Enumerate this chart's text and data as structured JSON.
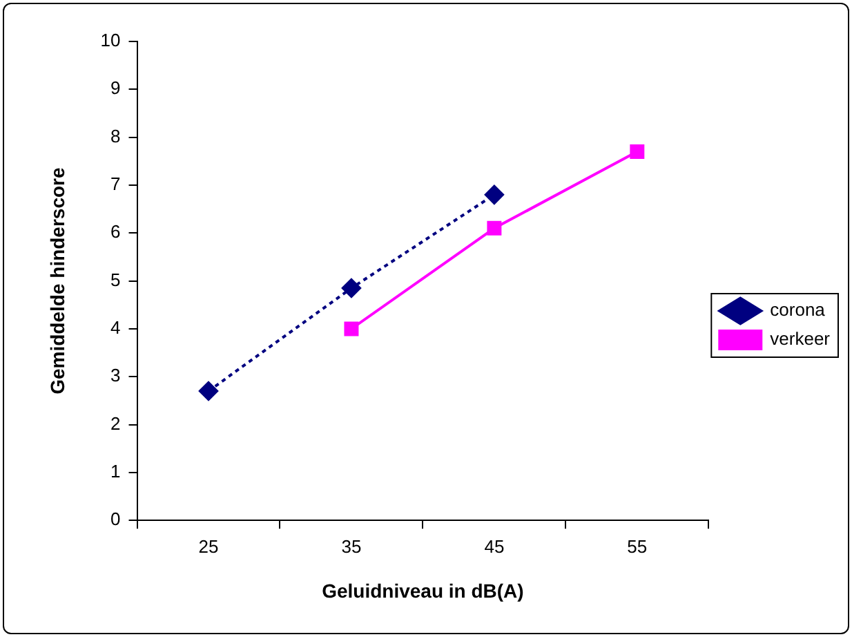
{
  "chart_data": {
    "type": "line",
    "xlabel": "Geluidniveau in dB(A)",
    "ylabel": "Gemiddelde hinderscore",
    "categories": [
      "25",
      "35",
      "45",
      "55"
    ],
    "series": [
      {
        "name": "corona",
        "color": "#000080",
        "values": [
          2.7,
          4.85,
          6.8,
          null
        ],
        "marker": "diamond",
        "line_style": "dotted"
      },
      {
        "name": "verkeer",
        "color": "#ff00ff",
        "values": [
          null,
          4.0,
          6.1,
          7.7
        ],
        "marker": "square",
        "line_style": "solid"
      }
    ],
    "ylim": [
      0,
      10
    ],
    "yticks": [
      0,
      1,
      2,
      3,
      4,
      5,
      6,
      7,
      8,
      9,
      10
    ],
    "grid": false,
    "legend": "right"
  }
}
